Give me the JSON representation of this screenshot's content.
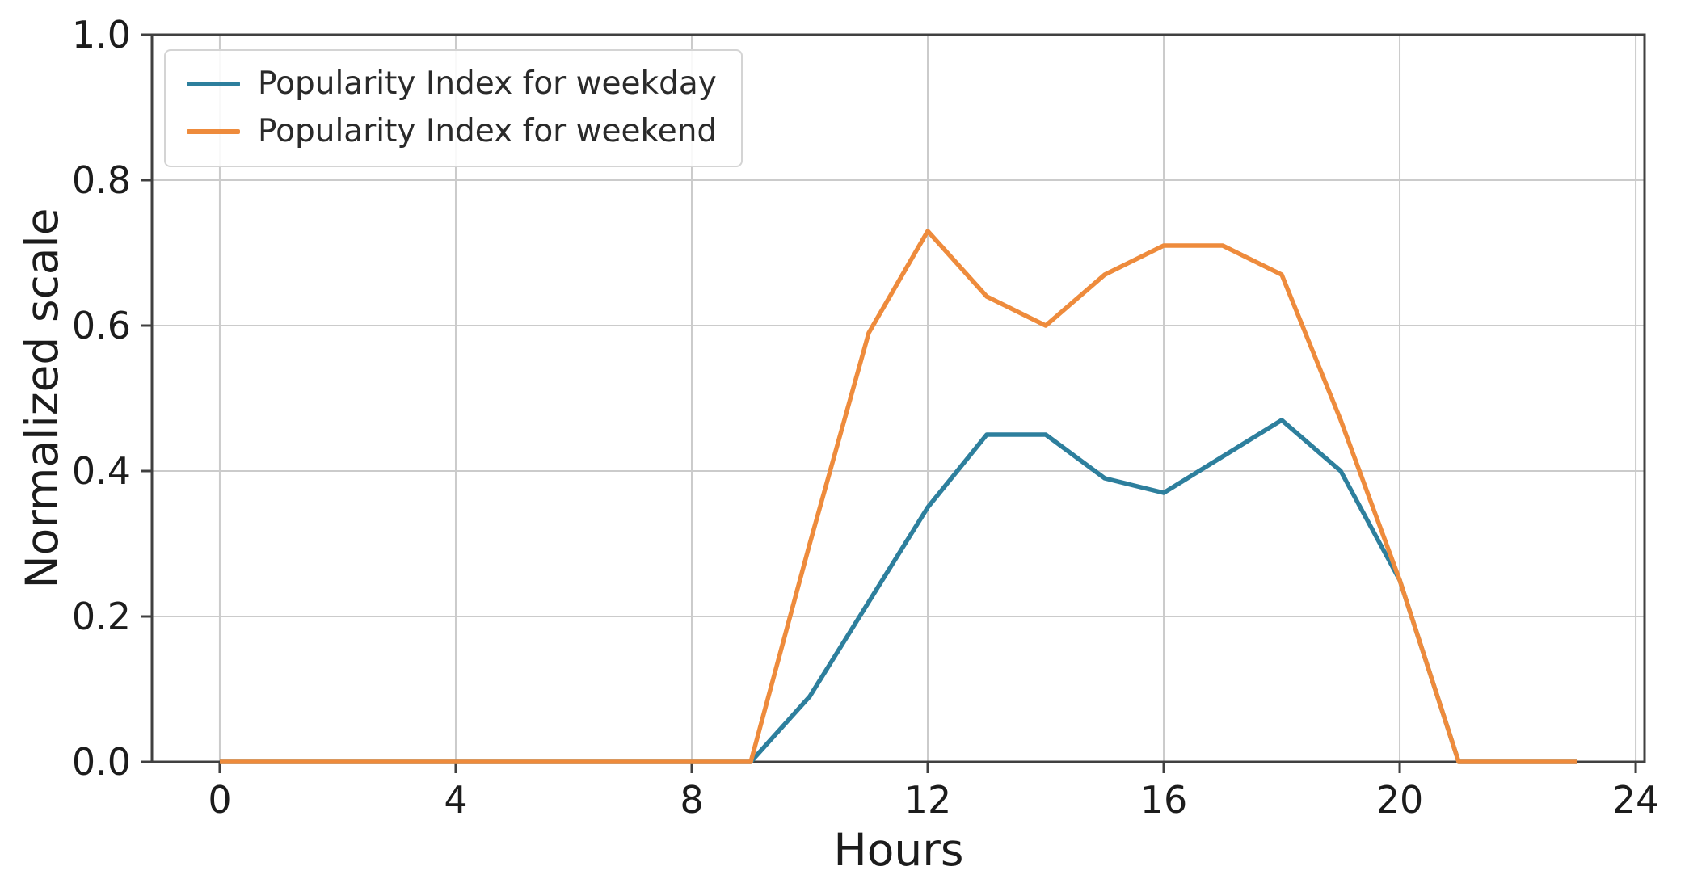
{
  "chart_data": {
    "type": "line",
    "x": [
      0,
      1,
      2,
      3,
      4,
      5,
      6,
      7,
      8,
      9,
      10,
      11,
      12,
      13,
      14,
      15,
      16,
      17,
      18,
      19,
      20,
      21,
      22,
      23
    ],
    "series": [
      {
        "name": "Popularity Index for weekday",
        "color": "#2d7f9d",
        "values": [
          0,
          0,
          0,
          0,
          0,
          0,
          0,
          0,
          0,
          0,
          0.09,
          0.22,
          0.35,
          0.45,
          0.45,
          0.39,
          0.37,
          0.42,
          0.47,
          0.4,
          0.25,
          0,
          0,
          0
        ]
      },
      {
        "name": "Popularity Index for weekend",
        "color": "#ee8b3c",
        "values": [
          0,
          0,
          0,
          0,
          0,
          0,
          0,
          0,
          0,
          0,
          0.3,
          0.59,
          0.73,
          0.64,
          0.6,
          0.67,
          0.71,
          0.71,
          0.67,
          0.47,
          0.25,
          0,
          0,
          0
        ]
      }
    ],
    "title": "",
    "xlabel": "Hours",
    "ylabel": "Normalized scale",
    "xlim": [
      -1.15,
      24.15
    ],
    "ylim": [
      0,
      1
    ],
    "xticks": [
      "0",
      "4",
      "8",
      "12",
      "16",
      "20",
      "24"
    ],
    "xtick_values": [
      0,
      4,
      8,
      12,
      16,
      20,
      24
    ],
    "yticks": [
      "0.0",
      "0.2",
      "0.4",
      "0.6",
      "0.8",
      "1.0"
    ],
    "ytick_values": [
      0,
      0.2,
      0.4,
      0.6,
      0.8,
      1.0
    ],
    "grid": true,
    "legend_position": "upper left"
  }
}
